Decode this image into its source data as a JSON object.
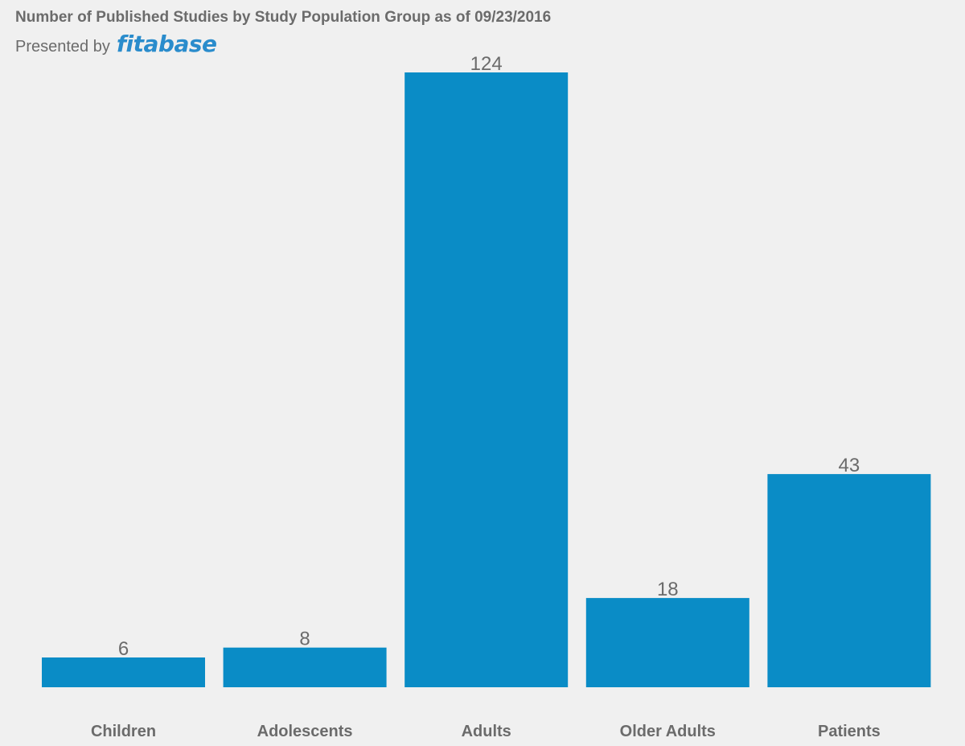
{
  "header": {
    "title": "Number of Published Studies by Study Population Group as of 09/23/2016",
    "presented_by": "Presented by",
    "brand": "fitabase"
  },
  "colors": {
    "bar": "#0a8cc6",
    "text": "#6b6b6b",
    "brand": "#2a8ccc",
    "background": "#f0f0f0"
  },
  "chart_data": {
    "type": "bar",
    "title": "Number of Published Studies by Study Population Group as of 09/23/2016",
    "categories": [
      "Children",
      "Adolescents",
      "Adults",
      "Older Adults",
      "Patients"
    ],
    "values": [
      6,
      8,
      124,
      18,
      43
    ],
    "xlabel": "",
    "ylabel": "",
    "ylim": [
      0,
      124
    ],
    "grid": false,
    "legend": "none"
  }
}
